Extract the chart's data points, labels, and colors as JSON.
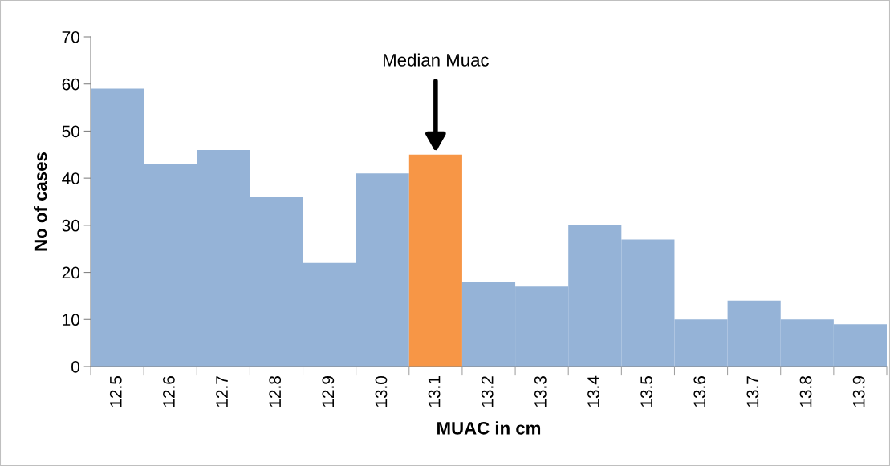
{
  "chart_data": {
    "type": "bar",
    "xlabel": "MUAC in cm",
    "ylabel": "No of cases",
    "categories": [
      "12.5",
      "12.6",
      "12.7",
      "12.8",
      "12.9",
      "13.0",
      "13.1",
      "13.2",
      "13.3",
      "13.4",
      "13.5",
      "13.6",
      "13.7",
      "13.8",
      "13.9"
    ],
    "values": [
      59,
      43,
      46,
      36,
      22,
      41,
      45,
      18,
      17,
      30,
      27,
      10,
      14,
      10,
      9
    ],
    "colors": [
      "#95b3d7",
      "#95b3d7",
      "#95b3d7",
      "#95b3d7",
      "#95b3d7",
      "#95b3d7",
      "#f79646",
      "#95b3d7",
      "#95b3d7",
      "#95b3d7",
      "#95b3d7",
      "#95b3d7",
      "#95b3d7",
      "#95b3d7",
      "#95b3d7"
    ],
    "ylim": [
      0,
      70
    ],
    "yticks": [
      0,
      10,
      20,
      30,
      40,
      50,
      60,
      70
    ],
    "annotations": [
      {
        "text": "Median Muac",
        "x": "13.1",
        "y": 45
      }
    ],
    "grid": false
  }
}
